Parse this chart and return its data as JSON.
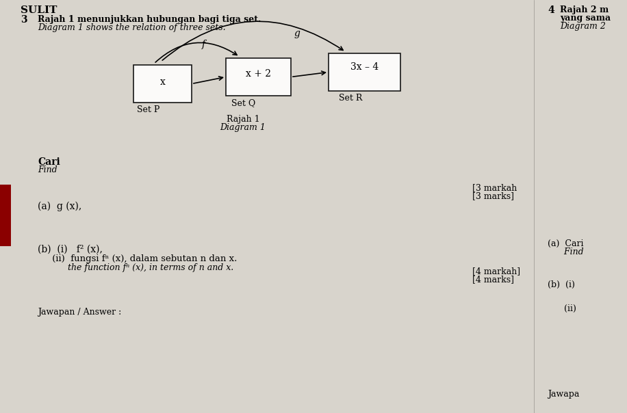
{
  "bg_color": "#d8d4cc",
  "title_left": "SULIT",
  "q3_label": "3",
  "q3_text1": "Rajah 1 menunjukkan hubungan bagi tiga set.",
  "q3_text2": "Diagram 1 shows the relation of three sets.",
  "box1_text": "x",
  "box2_text": "x + 2",
  "box3_text": "3x – 4",
  "set_p": "Set P",
  "set_q": "Set Q",
  "set_r": "Set R",
  "label_f": "f",
  "label_g": "g",
  "rajah1": "Rajah 1",
  "diagram1": "Diagram 1",
  "cari": "Cari",
  "find": "Find",
  "marks_3a": "[3 markah",
  "marks_3b": "[3 marks]",
  "part_a": "(a)  g (x),",
  "part_b_label": "(b)  (i)   f² (x),",
  "part_b_ii": "     (ii)  fungsi fⁿ (x), dalam sebutan n dan x.",
  "part_b_ii_en": "           the function fⁿ (x), in terms of n and x.",
  "marks_4a": "[4 markah]",
  "marks_4b": "[4 marks]",
  "jawapan": "Jawapan / Answer :",
  "q4_label": "4",
  "q4_text1": "Rajah 2 m",
  "q4_text2": "yang sama",
  "q4_text3": "Diagram 2",
  "right_a": "(a)  Cari",
  "right_find": "      Find",
  "right_b_i": "(b)  (i)",
  "right_b_ii": "      (ii)",
  "right_jawapan": "Jawapa"
}
